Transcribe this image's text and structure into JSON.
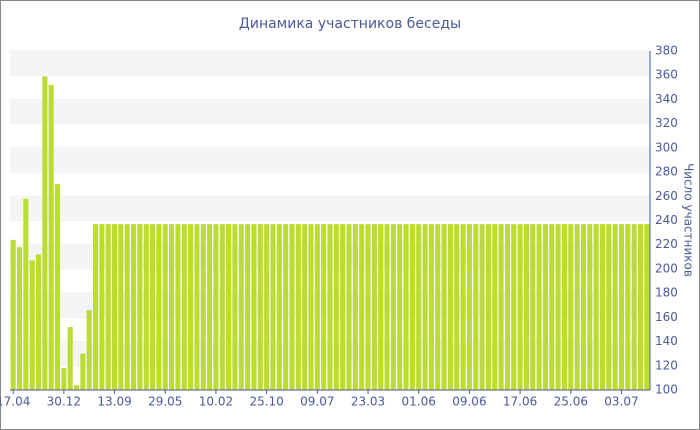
{
  "chart_data": {
    "type": "bar",
    "title": "Динамика участников беседы",
    "y_label": "Число участников",
    "categories": [
      "17.04",
      null,
      null,
      null,
      null,
      null,
      null,
      null,
      "30.12",
      null,
      null,
      null,
      null,
      null,
      null,
      null,
      "13.09",
      null,
      null,
      null,
      null,
      null,
      null,
      null,
      "29.05",
      null,
      null,
      null,
      null,
      null,
      null,
      null,
      "10.02",
      null,
      null,
      null,
      null,
      null,
      null,
      null,
      "25.10",
      null,
      null,
      null,
      null,
      null,
      null,
      null,
      "09.07",
      null,
      null,
      null,
      null,
      null,
      null,
      null,
      "23.03",
      null,
      null,
      null,
      null,
      null,
      null,
      null,
      "01.06",
      null,
      null,
      null,
      null,
      null,
      null,
      null,
      "09.06",
      null,
      null,
      null,
      null,
      null,
      null,
      null,
      "17.06",
      null,
      null,
      null,
      null,
      null,
      null,
      null,
      "25.06",
      null,
      null,
      null,
      null,
      null,
      null,
      null,
      "03.07",
      null,
      null,
      null,
      null
    ],
    "values": [
      224,
      218,
      258,
      207,
      212,
      359,
      352,
      270,
      118,
      152,
      104,
      130,
      166,
      237,
      237,
      237,
      237,
      237,
      237,
      237,
      237,
      237,
      237,
      237,
      237,
      237,
      237,
      237,
      237,
      237,
      237,
      237,
      237,
      237,
      237,
      237,
      237,
      237,
      237,
      237,
      237,
      237,
      237,
      237,
      237,
      237,
      237,
      237,
      237,
      237,
      237,
      237,
      237,
      237,
      237,
      237,
      237,
      237,
      237,
      237,
      237,
      237,
      237,
      237,
      237,
      237,
      237,
      237,
      237,
      237,
      237,
      237,
      237,
      237,
      237,
      237,
      237,
      237,
      237,
      237,
      237,
      237,
      237,
      237,
      237,
      237,
      237,
      237,
      237,
      237,
      237,
      237,
      237,
      237,
      237,
      237,
      237,
      237,
      237,
      237,
      237
    ],
    "color": "#bbdc30",
    "ylim": [
      100,
      380
    ],
    "yticks": [
      100,
      120,
      140,
      160,
      180,
      200,
      220,
      240,
      260,
      280,
      300,
      320,
      340,
      360,
      380
    ],
    "grid": true
  }
}
